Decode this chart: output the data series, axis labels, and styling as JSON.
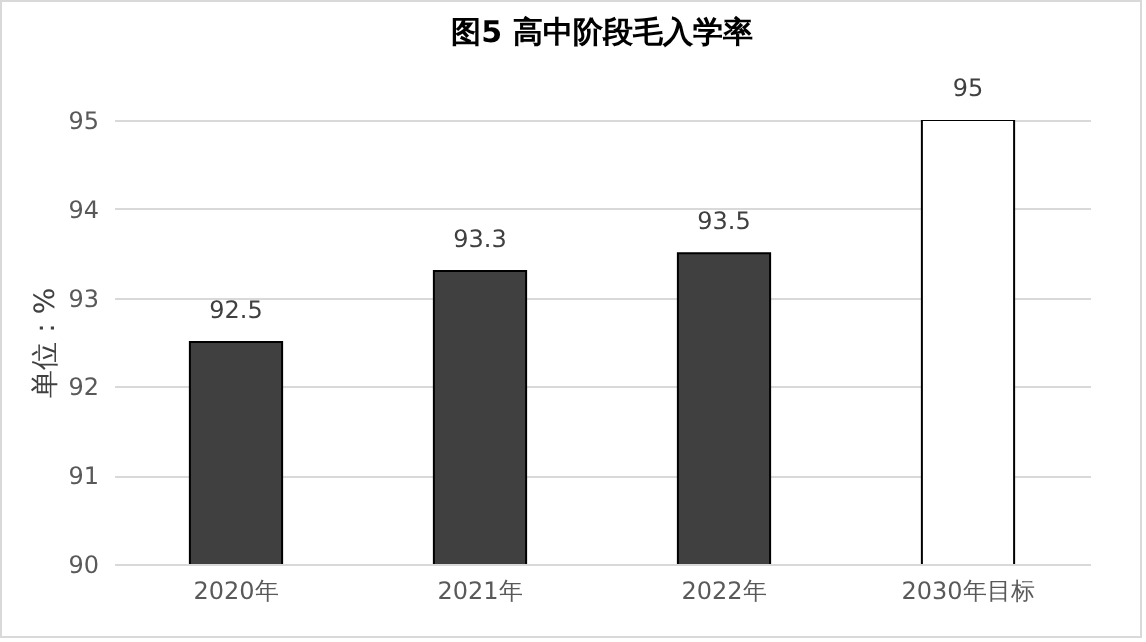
{
  "chart_data": {
    "type": "bar",
    "title": "图5  高中阶段毛入学率",
    "ylabel": "单位：%",
    "categories": [
      "2020年",
      "2021年",
      "2022年",
      "2030年目标"
    ],
    "values": [
      92.5,
      93.3,
      93.5,
      95
    ],
    "colors": [
      "#404040",
      "#404040",
      "#404040",
      "#ffffff"
    ],
    "ylim": [
      90,
      95
    ],
    "yticks": [
      90,
      91,
      92,
      93,
      94,
      95
    ],
    "grid": "y",
    "data_labels": true
  }
}
